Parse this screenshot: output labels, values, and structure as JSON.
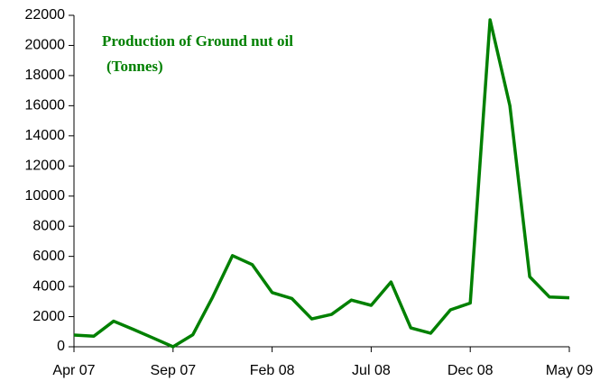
{
  "chart_data": {
    "type": "line",
    "title": "Production of Ground nut oil",
    "subtitle": "(Tonnes)",
    "categories": [
      "Apr 07",
      null,
      null,
      null,
      null,
      "Sep 07",
      null,
      null,
      null,
      null,
      "Feb 08",
      null,
      null,
      null,
      null,
      "Jul 08",
      null,
      null,
      null,
      null,
      "Dec 08",
      null,
      null,
      null,
      null,
      "May 09"
    ],
    "values": [
      780,
      700,
      1700,
      1150,
      580,
      0,
      800,
      3300,
      6050,
      5450,
      3600,
      3200,
      1850,
      2150,
      3100,
      2750,
      4300,
      1250,
      900,
      2450,
      2900,
      21700,
      16000,
      4650,
      3300,
      3250
    ],
    "color": "#008000",
    "ylim": [
      0,
      22000
    ],
    "yticks": [
      0,
      2000,
      4000,
      6000,
      8000,
      10000,
      12000,
      14000,
      16000,
      18000,
      20000,
      22000
    ],
    "grid": false
  }
}
